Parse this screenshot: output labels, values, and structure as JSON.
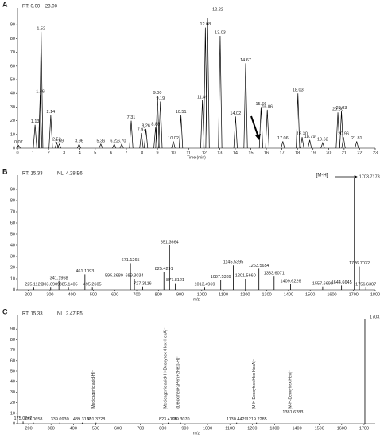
{
  "chart_data": [
    {
      "type": "chromatogram",
      "panel_label": "A",
      "info": "RT: 0.00 – 23.00",
      "x_label": "Time (min)",
      "color": "#000000",
      "x": [
        0.07,
        1.13,
        1.46,
        1.52,
        2.14,
        2.52,
        2.69,
        3.96,
        5.36,
        6.22,
        6.7,
        7.31,
        7.97,
        8.26,
        8.88,
        9.0,
        9.19,
        10.02,
        10.51,
        11.89,
        12.08,
        12.22,
        13.03,
        14.02,
        14.67,
        15.66,
        16.06,
        17.06,
        18.03,
        18.3,
        18.79,
        19.62,
        20.6,
        20.83,
        20.96,
        21.81
      ],
      "x_labels": [
        "0.07",
        "1.13",
        "1.46",
        "1.52",
        "2.14",
        "2.52",
        "2.69",
        "3.96",
        "5.36",
        "6.22",
        "6.70",
        "7.31",
        "7.97",
        "8.26",
        "8.88",
        "9.00",
        "9.19",
        "10.02",
        "10.51",
        "11.89",
        "12.08",
        "12.22",
        "13.03",
        "14.02",
        "14.67",
        "15.66",
        "16.06",
        "17.06",
        "18.03",
        "18.30",
        "18.79",
        "19.62",
        "20.60",
        "20.83",
        "20.96",
        "21.81"
      ],
      "values": [
        2,
        17,
        39,
        85,
        24,
        4,
        3,
        3,
        3,
        3,
        3,
        20,
        11,
        14,
        15,
        38,
        34,
        5,
        24,
        35,
        88,
        95,
        82,
        23,
        62,
        30,
        28,
        5,
        40,
        8,
        6,
        4,
        26,
        27,
        8,
        5
      ],
      "xlim": [
        0,
        23
      ],
      "xticks": [
        0,
        1,
        2,
        3,
        4,
        5,
        6,
        7,
        8,
        9,
        10,
        11,
        12,
        13,
        14,
        15,
        16,
        17,
        18,
        19,
        20,
        21,
        22,
        23
      ],
      "ylim": [
        0,
        100
      ],
      "yticks": [
        0,
        10,
        20,
        30,
        40,
        50,
        60,
        70,
        80,
        90
      ]
    },
    {
      "type": "spectrum",
      "panel_label": "B",
      "info": "RT: 15.33",
      "nl": "NL: 4.28 E6",
      "x_label": "m/z",
      "color": "#000000",
      "annotation": "[M-H]⁻",
      "x": [
        225.1129,
        303.0909,
        341.1968,
        385.1405,
        461.1093,
        495.2605,
        595.2689,
        671.1265,
        689.3034,
        727.3116,
        825.4291,
        851.3664,
        877.8121,
        1013.4969,
        1087.5339,
        1145.5395,
        1201.566,
        1263.5654,
        1333.6071,
        1409.6226,
        1557.6698,
        1644.6645,
        1703.7173,
        1726.7032,
        1756.6307
      ],
      "x_labels": [
        "225.1129",
        "303.0909",
        "341.1968",
        "385.1405",
        "461.1093",
        "495.2605",
        "595.2689",
        "671.1265",
        "689.3034",
        "727.3116",
        "825.4291",
        "851.3664",
        "877.8121",
        "1013.4969",
        "1087.5339",
        "1145.5395",
        "1201.5660",
        "1263.5654",
        "1333.6071",
        "1409.6226",
        "1557.6698",
        "1644.6645",
        "1703.7173",
        "1726.7032",
        "1756.6307"
      ],
      "values": [
        2,
        2,
        8,
        2,
        14,
        2,
        10,
        24,
        10,
        3,
        16,
        40,
        6,
        2,
        9,
        22,
        10,
        19,
        12,
        5,
        3,
        4,
        100,
        21,
        2
      ],
      "xlim": [
        150,
        1800
      ],
      "xticks": [
        200,
        300,
        400,
        500,
        600,
        700,
        800,
        900,
        1000,
        1100,
        1200,
        1300,
        1400,
        1500,
        1600,
        1700,
        1800
      ],
      "ylim": [
        0,
        100
      ],
      "yticks": [
        0,
        10,
        20,
        30,
        40,
        50,
        60,
        70,
        80,
        90
      ]
    },
    {
      "type": "spectrum",
      "panel_label": "C",
      "info": "RT: 15.33",
      "nl": "NL: 2.47 E5",
      "x_label": "m/z",
      "color": "#000000",
      "x": [
        175.0242,
        221.0658,
        339.093,
        439.3193,
        501.3228,
        823.4109,
        879.307,
        1130.4429,
        1219.2285,
        1381.6283,
        1703.7208
      ],
      "x_labels": [
        "175.0242",
        "221.0658",
        "339.0930",
        "439.3193",
        "501.3228",
        "823.4109",
        "879.3070",
        "1130.4429",
        "1219.2285",
        "1381.6283",
        "1703.7208"
      ],
      "values": [
        2,
        1,
        1,
        1,
        1,
        1,
        1,
        1,
        1,
        8,
        100
      ],
      "fragments": [
        {
          "text": "[Medicagenic acid-H]⁻",
          "x": 501.3228
        },
        {
          "text": "[Medicagenic acid+H+Deoxyhex+Hex+HexA]⁻",
          "x": 823.4109
        },
        {
          "text": "[(Deoxyhex+2Pent+2Hex)-H]⁻",
          "x": 879.307
        },
        {
          "text": "[M-H-Deoxyhex-Hex-HexA]⁻",
          "x": 1219.2285
        },
        {
          "text": "[M-H-Deoxyhex-Hex]⁻",
          "x": 1381.6283
        }
      ],
      "xlim": [
        150,
        1750
      ],
      "xticks": [
        200,
        300,
        400,
        500,
        600,
        700,
        800,
        900,
        1000,
        1100,
        1200,
        1300,
        1400,
        1500,
        1600,
        1700
      ],
      "ylim": [
        0,
        100
      ],
      "yticks": [
        0,
        10,
        20,
        30,
        40,
        50,
        60,
        70,
        80,
        90
      ]
    }
  ]
}
